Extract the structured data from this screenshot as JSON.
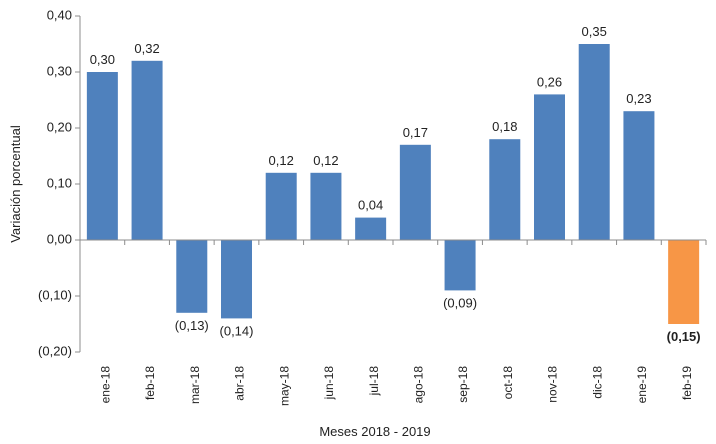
{
  "chart_data": {
    "type": "bar",
    "title": "",
    "xlabel": "Meses 2018 - 2019",
    "ylabel": "Variación porcentual",
    "ylim": [
      -0.2,
      0.4
    ],
    "yticks": [
      0.4,
      0.3,
      0.2,
      0.1,
      0.0,
      -0.1,
      -0.2
    ],
    "ytick_labels": [
      "0,40",
      "0,30",
      "0,20",
      "0,10",
      "0,00",
      "(0,10)",
      "(0,20)"
    ],
    "grid": false,
    "categories": [
      "ene-18",
      "feb-18",
      "mar-18",
      "abr-18",
      "may-18",
      "jun-18",
      "jul-18",
      "ago-18",
      "sep-18",
      "oct-18",
      "nov-18",
      "dic-18",
      "ene-19",
      "feb-19"
    ],
    "values": [
      0.3,
      0.32,
      -0.13,
      -0.14,
      0.12,
      0.12,
      0.04,
      0.17,
      -0.09,
      0.18,
      0.26,
      0.35,
      0.23,
      -0.15
    ],
    "data_labels": [
      "0,30",
      "0,32",
      "(0,13)",
      "(0,14)",
      "0,12",
      "0,12",
      "0,04",
      "0,17",
      "(0,09)",
      "0,18",
      "0,26",
      "0,35",
      "0,23",
      "(0,15)"
    ],
    "highlight_index": 13,
    "colors": {
      "bar": "#4f81bd",
      "highlight": "#f79646",
      "axis": "#8c8c8c"
    }
  }
}
